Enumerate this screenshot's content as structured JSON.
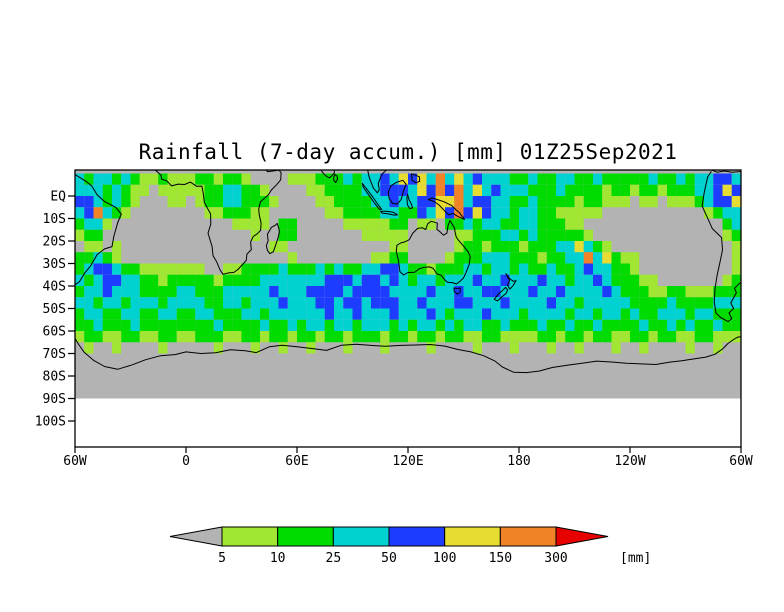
{
  "chart_data": {
    "type": "heatmap",
    "title": "Rainfall (7-day accum.) [mm] 01Z25Sep2021",
    "variable": "Rainfall (7-day accumulation)",
    "unit": "mm",
    "valid_time_label": "01Z25Sep2021",
    "no_data_color": "#b3b3b3",
    "y_axis": {
      "tick_labels": [
        "EQ",
        "10S",
        "20S",
        "30S",
        "40S",
        "50S",
        "60S",
        "70S",
        "80S",
        "90S",
        "100S"
      ]
    },
    "x_axis": {
      "tick_labels": [
        "60W",
        "0",
        "60E",
        "120E",
        "180",
        "120W",
        "60W"
      ]
    },
    "legend": {
      "thresholds": [
        "5",
        "10",
        "25",
        "50",
        "100",
        "150",
        "300"
      ],
      "unit_label": "[mm]",
      "below_min_color": "#b3b3b3",
      "colors": [
        "#a0e632",
        "#00dc00",
        "#00d2d2",
        "#1e3cff",
        "#e6dc32",
        "#f08228",
        "#e60000"
      ]
    },
    "grid": {
      "lon_start": -60,
      "lon_step": 5,
      "lat_start": 10,
      "lat_step": -5,
      "categories_note": "digits 0-7: 0=<5mm(gray) 1=5-10 2=10-25 3=25-50 4=50-100 5=100-150 6=150-300 7=>300",
      "rows": [
        "323323211211122122100001112223233435453635343332232233223222223223233443",
        "333232110111112233221000011222233444354646353433322232222122122122233454",
        "443232100011012233222100001122223343344556344332232222122111011011123445",
        "346321000000001122211000000112222332243546454332332211111000000000001233",
        "233100000000000001111022000001111122011022323322332221100000000000000023",
        "122000000000000000010022000000011111000001122233232222210000000000000012",
        "011010000000000000000110000000000011000001221222122233532100000000000001",
        "223210000000000000000001000000001122000012223332221223363521100000000001",
        "234432211111110011222232223232233443221222332332322322343322100000000001",
        "323443322122222122223333333444344343233233343343334332334322211000000012",
        "233433322223322233333433344443444433334334334433343343333432221122111222",
        "332332333233332233233343334434434443343334433343333433233333222232222333",
        "233223322332233222332333333433433343334323334333233332332332322333233222",
        "223222322222222322223223233233233323233232332232223223223222232232322322",
        "122112211221122211221221221221222122122122112211112212212211221221122111",
        "010010000100000100010010010001000100001000010001000100100010010000100100",
        "000000000000000000000000000000000000000000000000000000000000000000000000",
        "000000000000000000000000000000000000000000000000000000000000000000000000",
        "000000000000000000000000000000000000000000000000000000000000000000000000",
        "000000000000000000000000000000000000000000000000000000000000000000000000"
      ]
    }
  }
}
